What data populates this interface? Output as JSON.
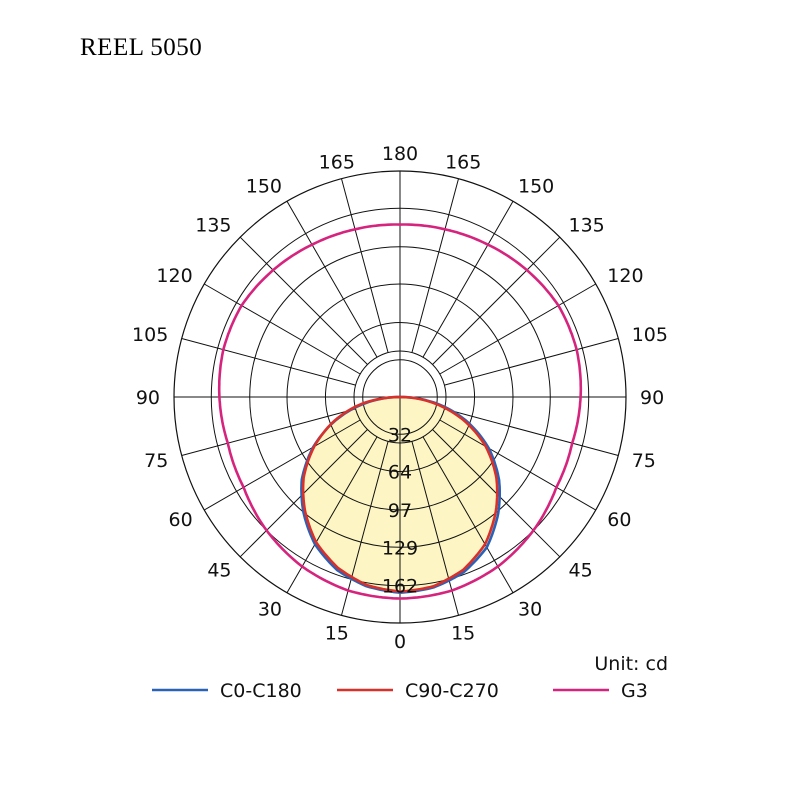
{
  "title": "REEL 5050",
  "chart_data": {
    "type": "polar",
    "title": "REEL 5050",
    "unit_label": "Unit: cd",
    "r_max": 194,
    "ring_values": [
      32,
      64,
      97,
      129,
      162
    ],
    "ring_labels": [
      "32",
      "64",
      "97",
      "129",
      "162"
    ],
    "angle_ticks": [
      {
        "angle": 0,
        "label": "0"
      },
      {
        "angle": 15,
        "label": "15"
      },
      {
        "angle": 30,
        "label": "30"
      },
      {
        "angle": 45,
        "label": "45"
      },
      {
        "angle": 60,
        "label": "60"
      },
      {
        "angle": 75,
        "label": "75"
      },
      {
        "angle": 90,
        "label": "90"
      },
      {
        "angle": 105,
        "label": "105"
      },
      {
        "angle": 120,
        "label": "120"
      },
      {
        "angle": 135,
        "label": "135"
      },
      {
        "angle": 150,
        "label": "150"
      },
      {
        "angle": 165,
        "label": "165"
      },
      {
        "angle": 180,
        "label": "180"
      },
      {
        "angle": -15,
        "label": "15"
      },
      {
        "angle": -30,
        "label": "30"
      },
      {
        "angle": -45,
        "label": "45"
      },
      {
        "angle": -60,
        "label": "60"
      },
      {
        "angle": -75,
        "label": "75"
      },
      {
        "angle": -90,
        "label": "90"
      },
      {
        "angle": -105,
        "label": "105"
      },
      {
        "angle": -120,
        "label": "120"
      },
      {
        "angle": -135,
        "label": "135"
      },
      {
        "angle": -150,
        "label": "150"
      },
      {
        "angle": -165,
        "label": "165"
      }
    ],
    "fill_color": "#fdf6c4",
    "series": [
      {
        "name": "C0-C180",
        "color": "#2a62b8",
        "angles": [
          -90,
          -80,
          -70,
          -60,
          -50,
          -40,
          -30,
          -20,
          -10,
          0,
          10,
          20,
          30,
          40,
          50,
          60,
          70,
          80,
          90
        ],
        "values": [
          0,
          30,
          59,
          86,
          110,
          129,
          146,
          158,
          165,
          168,
          166,
          160,
          149,
          131,
          111,
          88,
          61,
          32,
          0
        ]
      },
      {
        "name": "C90-C270",
        "color": "#d8302a",
        "angles": [
          -90,
          -80,
          -70,
          -60,
          -50,
          -40,
          -30,
          -20,
          -10,
          0,
          10,
          20,
          30,
          40,
          50,
          60,
          70,
          80,
          90
        ],
        "values": [
          0,
          33,
          60,
          85,
          108,
          127,
          144,
          156,
          164,
          167,
          165,
          158,
          146,
          128,
          108,
          85,
          58,
          29,
          0
        ]
      },
      {
        "name": "G3",
        "color": "#d6247e",
        "angles": [
          -180,
          -165,
          -150,
          -135,
          -120,
          -105,
          -90,
          -75,
          -60,
          -45,
          -30,
          -15,
          0,
          15,
          30,
          45,
          60,
          75,
          90,
          105,
          120,
          135,
          150,
          165,
          180
        ],
        "values": [
          148,
          149,
          151,
          154,
          157,
          157,
          155,
          153,
          155,
          162,
          168,
          172,
          173,
          172,
          168,
          162,
          155,
          153,
          155,
          157,
          157,
          154,
          151,
          149,
          148
        ]
      }
    ],
    "legend_position": "bottom"
  }
}
